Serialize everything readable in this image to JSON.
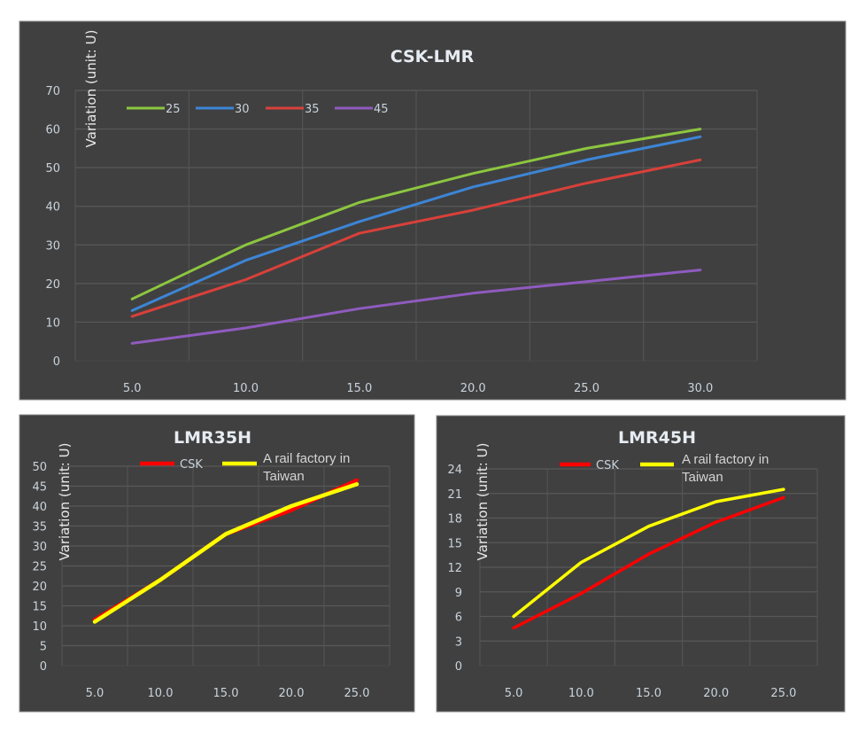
{
  "chart_data": [
    {
      "id": "csk-lmr",
      "type": "line",
      "title": "CSK-LMR",
      "xlabel": "",
      "ylabel": "Variation (unit: U)",
      "categories": [
        "5.0",
        "10.0",
        "15.0",
        "20.0",
        "25.0",
        "30.0"
      ],
      "ylim": [
        0,
        70
      ],
      "yticks": [
        "0",
        "10",
        "20",
        "30",
        "40",
        "50",
        "60",
        "70"
      ],
      "grid": true,
      "legend": "top-left",
      "series": [
        {
          "name": "25",
          "color": "#8dc63f",
          "values": [
            16,
            30,
            41,
            48.5,
            55,
            60
          ]
        },
        {
          "name": "30",
          "color": "#3d85d6",
          "values": [
            13,
            26,
            36,
            45,
            52,
            58
          ]
        },
        {
          "name": "35",
          "color": "#d9403a",
          "values": [
            11.5,
            21,
            33,
            39,
            46,
            52
          ]
        },
        {
          "name": "45",
          "color": "#8f5bbf",
          "values": [
            4.5,
            8.5,
            13.5,
            17.5,
            20.5,
            23.5
          ]
        }
      ]
    },
    {
      "id": "lmr35h",
      "type": "line",
      "title": "LMR35H",
      "xlabel": "",
      "ylabel": "Variation (unit: U)",
      "categories": [
        "5.0",
        "10.0",
        "15.0",
        "20.0",
        "25.0"
      ],
      "ylim": [
        0,
        50
      ],
      "yticks": [
        "0",
        "5",
        "10",
        "15",
        "20",
        "25",
        "30",
        "35",
        "40",
        "45",
        "50"
      ],
      "grid": true,
      "legend": "top",
      "series": [
        {
          "name": "CSK",
          "color": "#ff0000",
          "values": [
            11.5,
            21.5,
            33,
            39,
            46.5
          ]
        },
        {
          "name": "A rail factory in Taiwan",
          "name_lines": [
            "A rail factory in",
            "Taiwan"
          ],
          "color": "#ffff00",
          "values": [
            11,
            21.5,
            33,
            40,
            45.5
          ]
        }
      ]
    },
    {
      "id": "lmr45h",
      "type": "line",
      "title": "LMR45H",
      "xlabel": "",
      "ylabel": "Variation (unit: U)",
      "categories": [
        "5.0",
        "10.0",
        "15.0",
        "20.0",
        "25.0"
      ],
      "ylim": [
        0,
        24
      ],
      "yticks": [
        "0",
        "3",
        "6",
        "9",
        "12",
        "15",
        "18",
        "21",
        "24"
      ],
      "grid": true,
      "legend": "top",
      "series": [
        {
          "name": "CSK",
          "color": "#ff0000",
          "values": [
            4.6,
            8.8,
            13.6,
            17.5,
            20.5
          ]
        },
        {
          "name": "A rail factory in Taiwan",
          "name_lines": [
            "A rail factory in",
            "Taiwan"
          ],
          "color": "#ffff00",
          "values": [
            6,
            12.6,
            17,
            20,
            21.5
          ]
        }
      ]
    }
  ]
}
